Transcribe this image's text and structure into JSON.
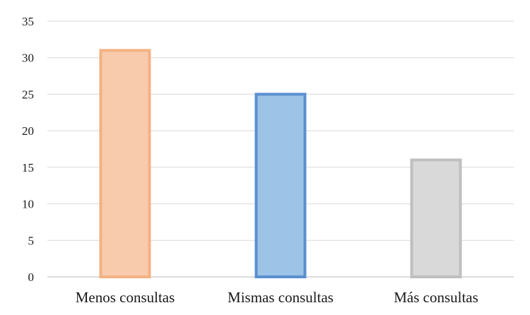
{
  "chart_data": {
    "type": "bar",
    "categories": [
      "Menos consultas",
      "Mismas consultas",
      "Más consultas"
    ],
    "values": [
      31,
      25,
      16
    ],
    "title": "",
    "xlabel": "",
    "ylabel": "",
    "ylim": [
      0,
      35
    ],
    "yticks": [
      "0",
      "5",
      "10",
      "15",
      "20",
      "25",
      "30",
      "35"
    ],
    "grid": true,
    "legend": "none",
    "colors": {
      "fills": [
        "#f8cbad",
        "#9dc3e6",
        "#d9d9d9"
      ],
      "strokes": [
        "#f4b183",
        "#5b8fd0",
        "#bfbfbf"
      ]
    }
  }
}
